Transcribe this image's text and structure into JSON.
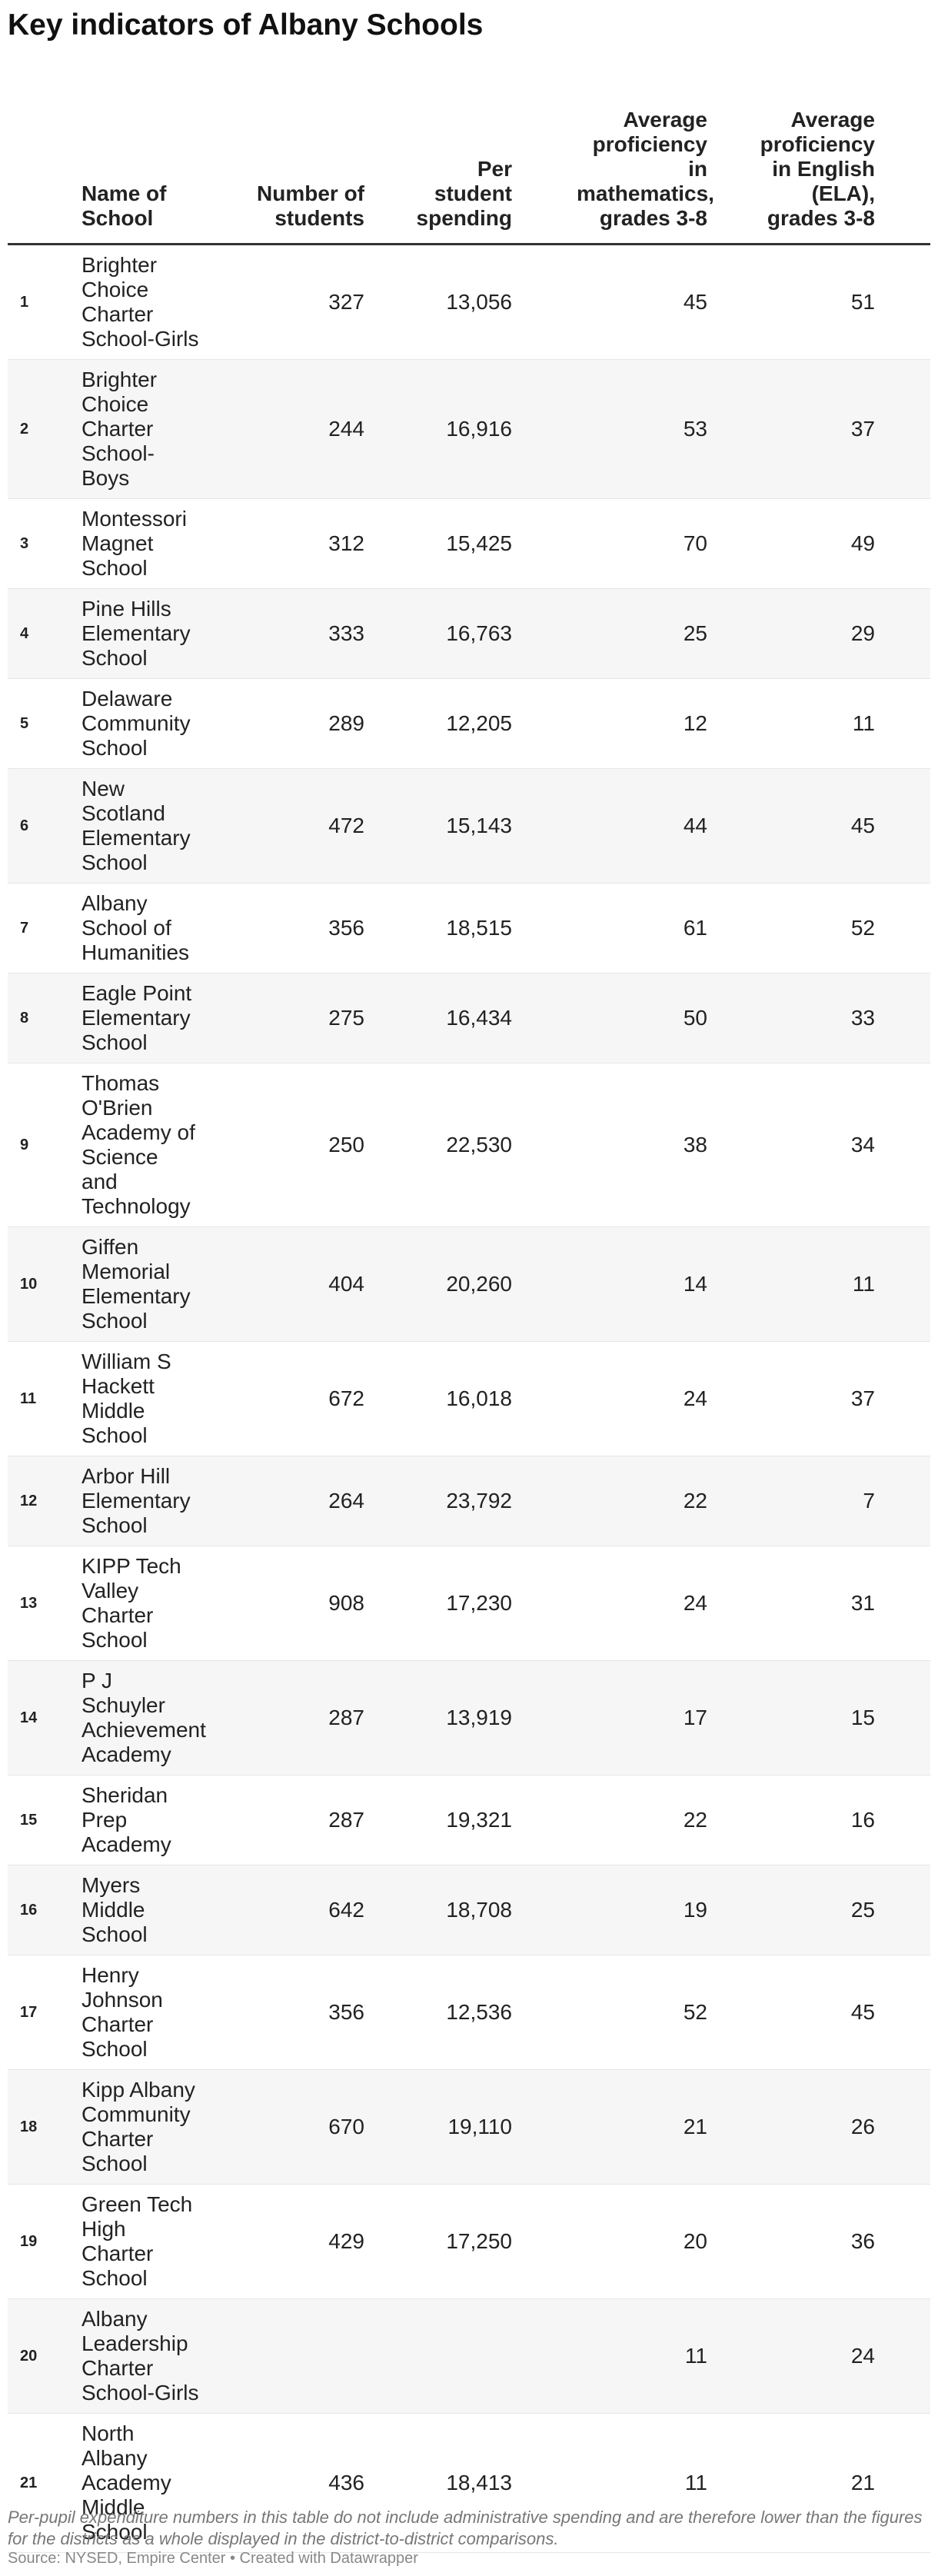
{
  "title": "Key indicators of Albany Schools",
  "footnote": "Per-pupil expenditure numbers in this table do not include administrative spending and are therefore lower than the figures for the districts as a whole displayed in the district-to-district comparisons.",
  "source": "Source: NYSED, Empire Center • Created with Datawrapper",
  "chart_data": {
    "type": "table",
    "title": "Key indicators of Albany Schools",
    "columns": [
      "",
      "Name of School",
      "Number of students",
      "Per student spending",
      "Average proficiency in mathematics, grades 3-8",
      "Average proficiency in English (ELA), grades 3-8"
    ],
    "rows": [
      [
        "1",
        "Brighter Choice Charter School-Girls",
        "327",
        "13,056",
        "45",
        "51"
      ],
      [
        "2",
        "Brighter Choice Charter School-Boys",
        "244",
        "16,916",
        "53",
        "37"
      ],
      [
        "3",
        "Montessori Magnet School",
        "312",
        "15,425",
        "70",
        "49"
      ],
      [
        "4",
        "Pine Hills Elementary School",
        "333",
        "16,763",
        "25",
        "29"
      ],
      [
        "5",
        "Delaware Community School",
        "289",
        "12,205",
        "12",
        "11"
      ],
      [
        "6",
        "New Scotland Elementary School",
        "472",
        "15,143",
        "44",
        "45"
      ],
      [
        "7",
        "Albany School of Humanities",
        "356",
        "18,515",
        "61",
        "52"
      ],
      [
        "8",
        "Eagle Point Elementary School",
        "275",
        "16,434",
        "50",
        "33"
      ],
      [
        "9",
        "Thomas O'Brien Academy of Science and Technology",
        "250",
        "22,530",
        "38",
        "34"
      ],
      [
        "10",
        "Giffen Memorial Elementary School",
        "404",
        "20,260",
        "14",
        "11"
      ],
      [
        "11",
        "William S Hackett Middle School",
        "672",
        "16,018",
        "24",
        "37"
      ],
      [
        "12",
        "Arbor Hill Elementary School",
        "264",
        "23,792",
        "22",
        "7"
      ],
      [
        "13",
        "KIPP Tech Valley Charter School",
        "908",
        "17,230",
        "24",
        "31"
      ],
      [
        "14",
        "P J Schuyler Achievement Academy",
        "287",
        "13,919",
        "17",
        "15"
      ],
      [
        "15",
        "Sheridan Prep Academy",
        "287",
        "19,321",
        "22",
        "16"
      ],
      [
        "16",
        "Myers Middle School",
        "642",
        "18,708",
        "19",
        "25"
      ],
      [
        "17",
        "Henry Johnson Charter School",
        "356",
        "12,536",
        "52",
        "45"
      ],
      [
        "18",
        "Kipp Albany Community Charter School",
        "670",
        "19,110",
        "21",
        "26"
      ],
      [
        "19",
        "Green Tech High Charter School",
        "429",
        "17,250",
        "20",
        "36"
      ],
      [
        "20",
        "Albany Leadership Charter School-Girls",
        "",
        "",
        "11",
        "24"
      ],
      [
        "21",
        "North Albany Academy Middle School",
        "436",
        "18,413",
        "11",
        "21"
      ]
    ]
  }
}
